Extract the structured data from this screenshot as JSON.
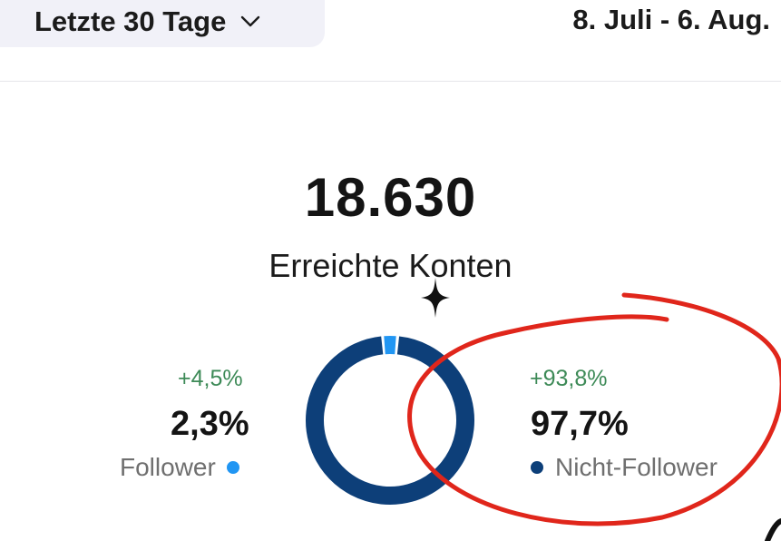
{
  "header": {
    "range_label": "Letzte 30 Tage",
    "date_range": "8. Juli - 6. Aug."
  },
  "summary": {
    "total": "18.630",
    "label": "Erreichte Konten"
  },
  "breakdown": {
    "follower": {
      "change": "+4,5%",
      "value": "2,3%",
      "label": "Follower",
      "share": 2.3,
      "color": "#2196f3"
    },
    "non_follower": {
      "change": "+93,8%",
      "value": "97,7%",
      "label": "Nicht-Follower",
      "share": 97.7,
      "color": "#0d3f79"
    }
  },
  "annotation": {
    "color": "#e0261b"
  }
}
